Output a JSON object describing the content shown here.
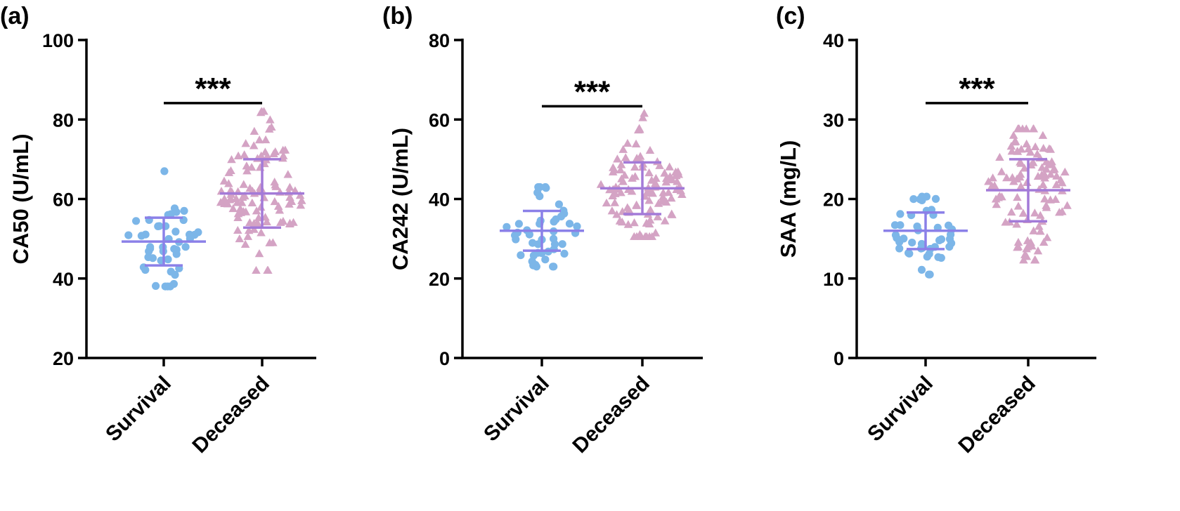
{
  "chart_data": [
    {
      "type": "scatter",
      "panel_label": "(a)",
      "ylabel": "CA50 (U/mL)",
      "xlabel": "",
      "categories": [
        "Survival",
        "Deceased"
      ],
      "ylim": [
        20,
        100
      ],
      "yticks": [
        20,
        40,
        60,
        80,
        100
      ],
      "significance": "***",
      "series": [
        {
          "name": "Survival",
          "marker": "circle",
          "color": "#7cb6e8",
          "count": 45,
          "mean": 49.3,
          "sd": 6.0,
          "min": 38,
          "max": 67
        },
        {
          "name": "Deceased",
          "marker": "triangle",
          "color": "#d4a3c4",
          "count": 110,
          "mean": 61.4,
          "sd": 8.6,
          "min": 42,
          "max": 82
        }
      ],
      "error_bar_color_survival": "#8b80e8",
      "error_bar_color_deceased": "#a37ad8"
    },
    {
      "type": "scatter",
      "panel_label": "(b)",
      "ylabel": "CA242 (U/mL)",
      "xlabel": "",
      "categories": [
        "Survival",
        "Deceased"
      ],
      "ylim": [
        0,
        80
      ],
      "yticks": [
        0,
        20,
        40,
        60,
        80
      ],
      "significance": "***",
      "series": [
        {
          "name": "Survival",
          "marker": "circle",
          "color": "#7cb6e8",
          "count": 45,
          "mean": 32.0,
          "sd": 5.0,
          "min": 23,
          "max": 43
        },
        {
          "name": "Deceased",
          "marker": "triangle",
          "color": "#d4a3c4",
          "count": 110,
          "mean": 42.7,
          "sd": 6.5,
          "min": 30.5,
          "max": 61.5
        }
      ],
      "error_bar_color_survival": "#8b80e8",
      "error_bar_color_deceased": "#a37ad8"
    },
    {
      "type": "scatter",
      "panel_label": "(c)",
      "ylabel": "SAA (mg/L)",
      "xlabel": "",
      "categories": [
        "Survival",
        "Deceased"
      ],
      "ylim": [
        0,
        40
      ],
      "yticks": [
        0,
        10,
        20,
        30,
        40
      ],
      "significance": "***",
      "series": [
        {
          "name": "Survival",
          "marker": "circle",
          "color": "#7cb6e8",
          "count": 45,
          "mean": 16.0,
          "sd": 2.3,
          "min": 10.5,
          "max": 20.3
        },
        {
          "name": "Deceased",
          "marker": "triangle",
          "color": "#d4a3c4",
          "count": 110,
          "mean": 21.1,
          "sd": 3.9,
          "min": 12.3,
          "max": 28.8
        }
      ],
      "error_bar_color_survival": "#8b80e8",
      "error_bar_color_deceased": "#a37ad8"
    }
  ]
}
